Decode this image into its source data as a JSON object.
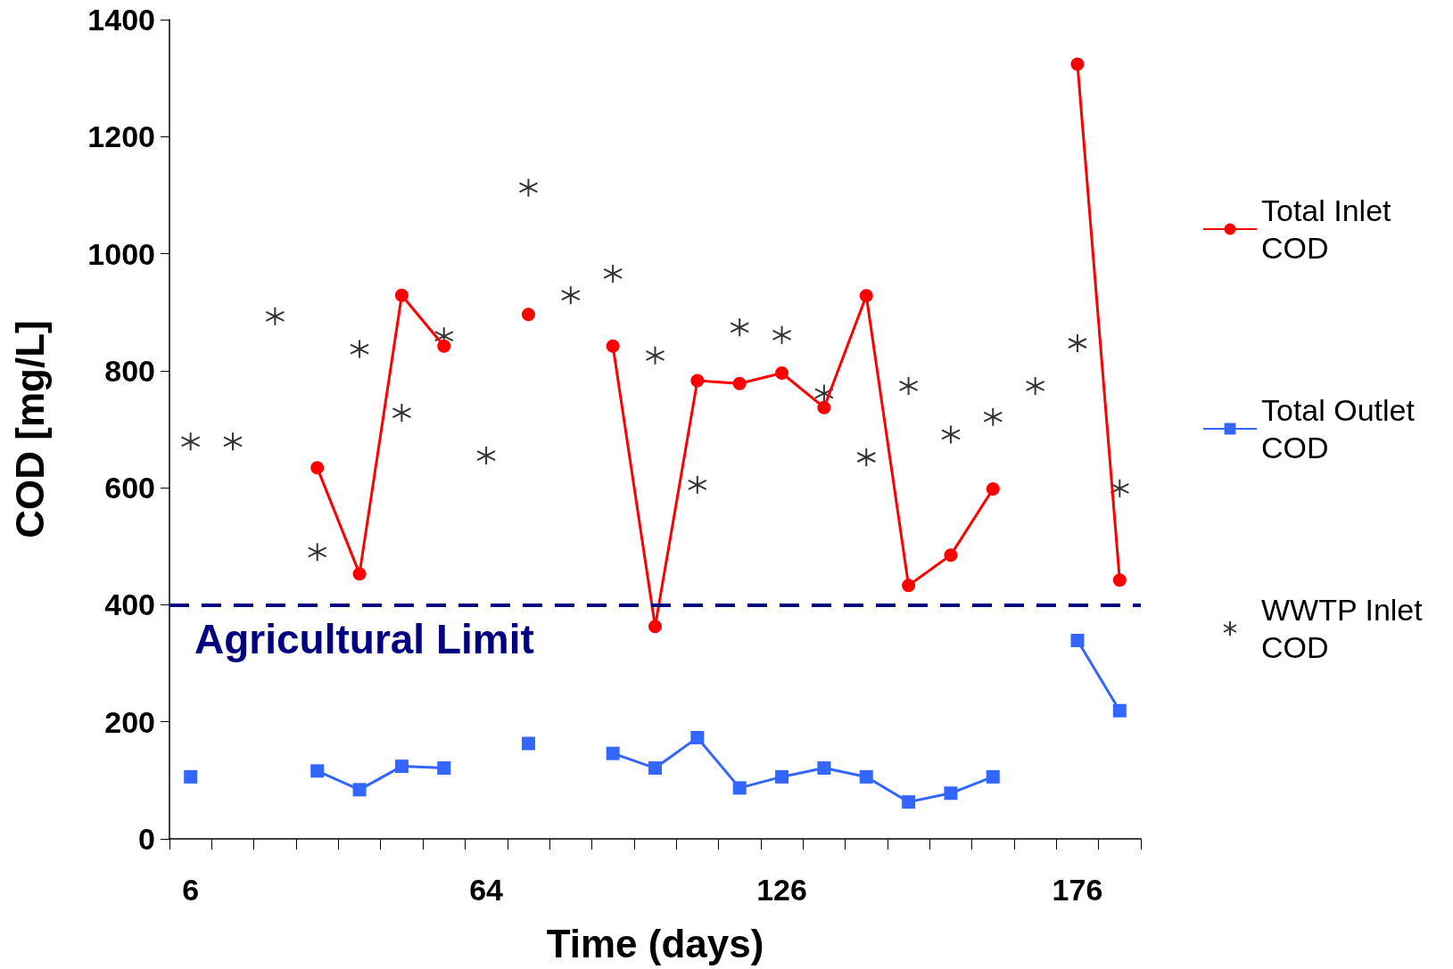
{
  "chart_data": {
    "type": "line",
    "xlabel": "Time (days)",
    "ylabel": "COD [mg/L]",
    "categories": [
      "6",
      null,
      null,
      null,
      null,
      null,
      null,
      "64",
      null,
      null,
      null,
      null,
      null,
      null,
      "126",
      null,
      null,
      null,
      null,
      null,
      null,
      "176",
      null
    ],
    "ylim": [
      0,
      1400
    ],
    "yticks": [
      0,
      200,
      400,
      600,
      800,
      1000,
      1200,
      1400
    ],
    "grid": false,
    "legend": "right",
    "series": [
      {
        "name": "Total Inlet COD",
        "color": "#ff0000",
        "marker": "circle",
        "line_style": "solid",
        "values": [
          null,
          null,
          null,
          634,
          453,
          929,
          842,
          null,
          896,
          null,
          842,
          363,
          783,
          778,
          796,
          737,
          928,
          433,
          485,
          598,
          null,
          1324,
          442
        ]
      },
      {
        "name": "Total Outlet COD",
        "color": "#3366ff",
        "marker": "square",
        "line_style": "solid",
        "values": [
          106,
          null,
          null,
          116,
          84,
          124,
          121,
          null,
          163,
          null,
          146,
          121,
          173,
          87,
          106,
          121,
          106,
          63,
          78,
          106,
          null,
          339,
          219
        ]
      },
      {
        "name": "WWTP Inlet COD",
        "type": "scatter",
        "color": "#000000",
        "marker": "cross",
        "values": [
          679,
          679,
          893,
          490,
          837,
          728,
          859,
          655,
          1113,
          929,
          966,
          826,
          605,
          874,
          861,
          761,
          652,
          774,
          691,
          721,
          774,
          847,
          599
        ]
      }
    ],
    "ref_lines": [
      {
        "axis": "y",
        "value": 400,
        "label": "Agricultural Limit",
        "color": "#000080",
        "line_style": "dashed"
      }
    ]
  }
}
